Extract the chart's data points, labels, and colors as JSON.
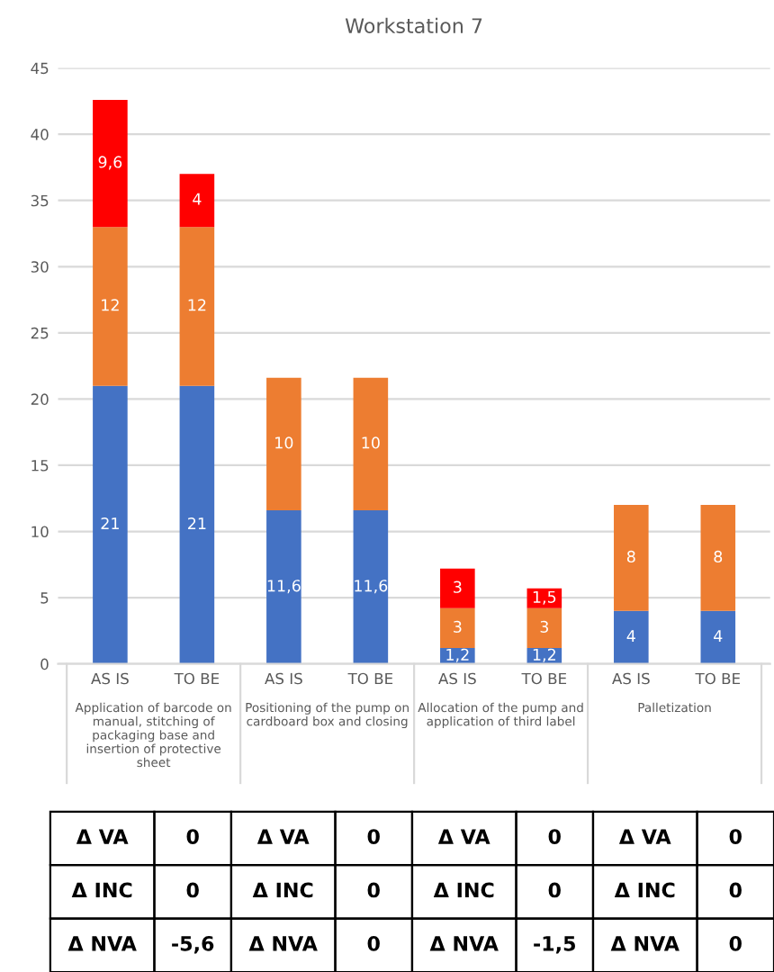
{
  "chart_data": [
    {
      "type": "bar",
      "title": "Workstation 7",
      "stacked": true,
      "categories": [
        "AS IS",
        "TO BE",
        "AS IS",
        "TO BE",
        "AS IS",
        "TO BE",
        "AS IS",
        "TO BE"
      ],
      "series": [
        {
          "color": "#4472c4",
          "values": [
            21,
            21,
            11.6,
            11.6,
            1.2,
            1.2,
            4,
            4
          ],
          "value_labels": [
            "21",
            "21",
            "11,6",
            "11,6",
            "1,2",
            "1,2",
            "4",
            "4"
          ]
        },
        {
          "color": "#ed7d31",
          "values": [
            12,
            12,
            10,
            10,
            3,
            3,
            8,
            8
          ],
          "value_labels": [
            "12",
            "12",
            "10",
            "10",
            "3",
            "3",
            "8",
            "8"
          ]
        },
        {
          "color": "#ff0000",
          "values": [
            9.6,
            4,
            0,
            0,
            3,
            1.5,
            0,
            0
          ],
          "value_labels": [
            "9,6",
            "4",
            null,
            null,
            "3",
            "1,5",
            null,
            null
          ]
        }
      ],
      "ylim": [
        0,
        45
      ],
      "yticks": [
        0,
        5,
        10,
        15,
        20,
        25,
        30,
        35,
        40,
        45
      ],
      "grid": "y",
      "legend": false,
      "annotations": [
        "Application of barcode on\nmanual, stitching of\npackaging base and\ninsertion of protective\nsheet",
        "Positioning of the pump on\ncardboard box and closing",
        "Allocation of the pump and\napplication of third label",
        "Palletization"
      ]
    },
    {
      "type": "other",
      "annotations": [
        "Δ VA",
        "0",
        "Δ VA",
        "0",
        "Δ VA",
        "0",
        "Δ VA",
        "0",
        "Δ INC",
        "0",
        "Δ INC",
        "0",
        "Δ INC",
        "0",
        "Δ INC",
        "0",
        "Δ NVA",
        "-5,6",
        "Δ NVA",
        "0",
        "Δ NVA",
        "-1,5",
        "Δ NVA",
        "0"
      ]
    }
  ]
}
